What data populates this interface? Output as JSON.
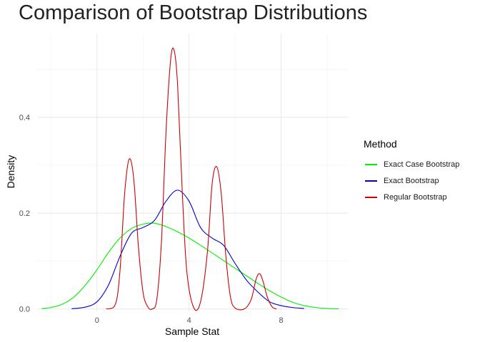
{
  "chart_data": {
    "type": "line",
    "title": "Comparison of Bootstrap Distributions",
    "xlabel": "Sample Stat",
    "ylabel": "Density",
    "xlim": [
      -2.6,
      10.9
    ],
    "ylim": [
      -0.005,
      0.575
    ],
    "x_ticks": [
      0,
      4,
      8
    ],
    "y_ticks": [
      0.0,
      0.2,
      0.4
    ],
    "x_tick_labels": [
      "0",
      "4",
      "8"
    ],
    "y_tick_labels": [
      "0.0",
      "0.2",
      "0.4"
    ],
    "grid": true,
    "legend_title": "Method",
    "legend_position": "right",
    "series": [
      {
        "name": "Exact Case Bootstrap",
        "color": "#00ee00",
        "points": [
          [
            -2.4,
            0.001
          ],
          [
            -2.0,
            0.003
          ],
          [
            -1.5,
            0.01
          ],
          [
            -1.0,
            0.025
          ],
          [
            -0.5,
            0.05
          ],
          [
            0.0,
            0.082
          ],
          [
            0.5,
            0.118
          ],
          [
            1.0,
            0.148
          ],
          [
            1.5,
            0.168
          ],
          [
            2.0,
            0.177
          ],
          [
            2.5,
            0.179
          ],
          [
            3.0,
            0.172
          ],
          [
            3.5,
            0.161
          ],
          [
            4.0,
            0.148
          ],
          [
            4.5,
            0.133
          ],
          [
            5.0,
            0.117
          ],
          [
            5.5,
            0.101
          ],
          [
            6.0,
            0.085
          ],
          [
            6.5,
            0.069
          ],
          [
            7.0,
            0.053
          ],
          [
            7.5,
            0.038
          ],
          [
            8.0,
            0.025
          ],
          [
            8.5,
            0.014
          ],
          [
            9.0,
            0.007
          ],
          [
            9.5,
            0.003
          ],
          [
            10.0,
            0.001
          ],
          [
            10.5,
            0.0003
          ]
        ]
      },
      {
        "name": "Exact Bootstrap",
        "color": "#0000cc",
        "points": [
          [
            -1.1,
            0.0005
          ],
          [
            -0.5,
            0.004
          ],
          [
            0.0,
            0.015
          ],
          [
            0.5,
            0.05
          ],
          [
            1.0,
            0.11
          ],
          [
            1.5,
            0.158
          ],
          [
            2.0,
            0.17
          ],
          [
            2.5,
            0.185
          ],
          [
            3.0,
            0.225
          ],
          [
            3.5,
            0.248
          ],
          [
            4.0,
            0.225
          ],
          [
            4.5,
            0.17
          ],
          [
            5.0,
            0.148
          ],
          [
            5.5,
            0.133
          ],
          [
            6.0,
            0.095
          ],
          [
            6.5,
            0.06
          ],
          [
            7.0,
            0.035
          ],
          [
            7.5,
            0.015
          ],
          [
            8.0,
            0.007
          ],
          [
            8.5,
            0.003
          ],
          [
            9.0,
            0.001
          ]
        ]
      },
      {
        "name": "Regular Bootstrap",
        "color": "#cc0000",
        "points": [
          [
            0.4,
            0.0
          ],
          [
            0.8,
            0.01
          ],
          [
            1.0,
            0.08
          ],
          [
            1.2,
            0.24
          ],
          [
            1.4,
            0.313
          ],
          [
            1.6,
            0.27
          ],
          [
            1.8,
            0.13
          ],
          [
            2.0,
            0.035
          ],
          [
            2.2,
            0.005
          ],
          [
            2.4,
            0.0
          ],
          [
            2.6,
            0.02
          ],
          [
            2.8,
            0.14
          ],
          [
            3.0,
            0.37
          ],
          [
            3.2,
            0.52
          ],
          [
            3.35,
            0.54
          ],
          [
            3.5,
            0.47
          ],
          [
            3.7,
            0.25
          ],
          [
            3.9,
            0.08
          ],
          [
            4.2,
            0.003
          ],
          [
            4.5,
            0.015
          ],
          [
            4.8,
            0.12
          ],
          [
            5.0,
            0.26
          ],
          [
            5.2,
            0.297
          ],
          [
            5.4,
            0.24
          ],
          [
            5.6,
            0.11
          ],
          [
            5.8,
            0.025
          ],
          [
            6.0,
            0.002
          ],
          [
            6.4,
            0.0
          ],
          [
            6.7,
            0.02
          ],
          [
            6.9,
            0.06
          ],
          [
            7.05,
            0.074
          ],
          [
            7.2,
            0.06
          ],
          [
            7.4,
            0.025
          ],
          [
            7.6,
            0.005
          ],
          [
            7.8,
            0.0
          ]
        ]
      }
    ]
  }
}
